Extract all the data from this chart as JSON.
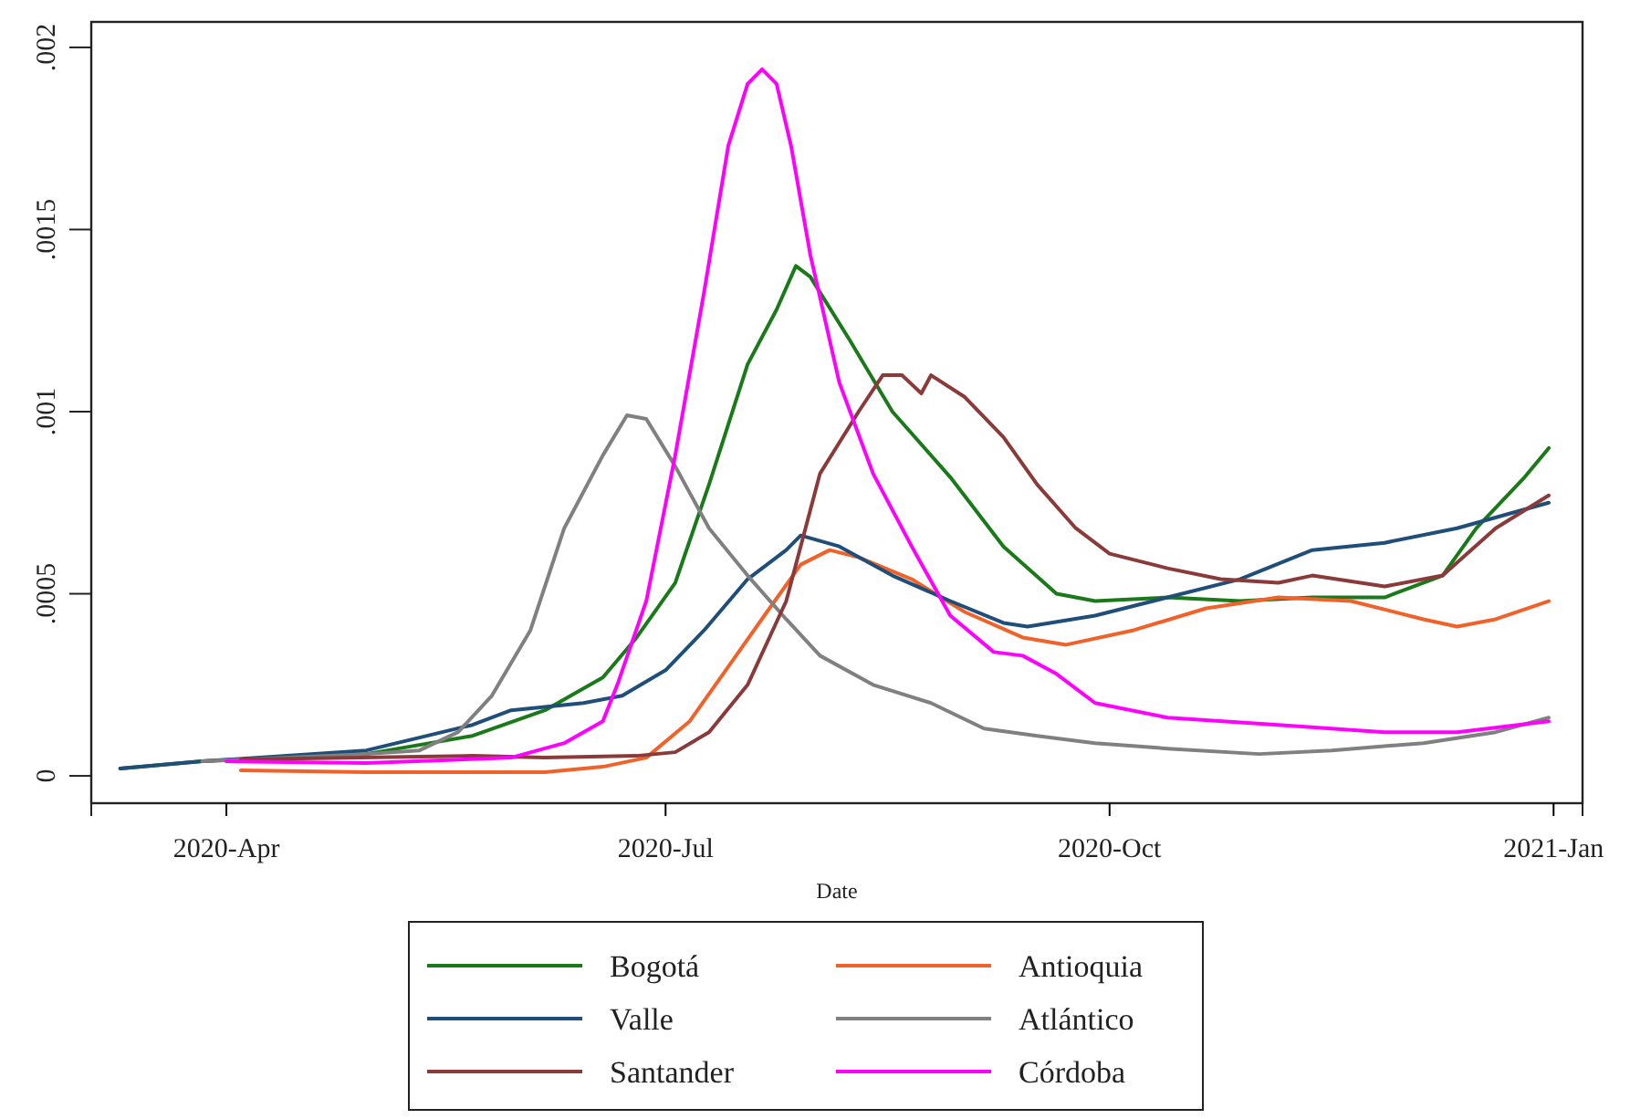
{
  "chart_data": {
    "type": "line",
    "xlabel": "Date",
    "legend": "bottom",
    "grid": false,
    "line_style": "solid",
    "marker": "none",
    "xlim": [
      "2020-03-04",
      "2021-01-07"
    ],
    "xticks": [
      {
        "value": "2020-04-01",
        "label": "2020-Apr"
      },
      {
        "value": "2020-07-01",
        "label": "2020-Jul"
      },
      {
        "value": "2020-10-01",
        "label": "2020-Oct"
      },
      {
        "value": "2021-01-01",
        "label": "2021-Jan"
      }
    ],
    "ylim": [
      -7.5e-05,
      0.00207
    ],
    "yticks": [
      0,
      {
        "value": 0.0005,
        "label": ".0005"
      },
      {
        "value": 0.001,
        "label": ".001"
      },
      {
        "value": 0.0015,
        "label": ".0015"
      },
      {
        "value": 0.002,
        "label": ".002"
      }
    ],
    "series": [
      {
        "name": "Bogotá",
        "color": "#1a7a1a",
        "x": [
          "2020-03-10",
          "2020-03-27",
          "2020-04-30",
          "2020-05-22",
          "2020-06-06",
          "2020-06-18",
          "2020-06-25",
          "2020-07-03",
          "2020-07-10",
          "2020-07-18",
          "2020-07-24",
          "2020-07-28",
          "2020-07-31",
          "2020-08-08",
          "2020-08-17",
          "2020-08-29",
          "2020-09-09",
          "2020-09-20",
          "2020-09-28",
          "2020-10-13",
          "2020-10-28",
          "2020-11-12",
          "2020-11-27",
          "2020-12-09",
          "2020-12-16",
          "2020-12-26",
          "2020-12-31"
        ],
        "values": [
          2e-05,
          4e-05,
          6e-05,
          0.00011,
          0.00018,
          0.00027,
          0.00038,
          0.00053,
          0.0008,
          0.00113,
          0.00128,
          0.0014,
          0.00137,
          0.0012,
          0.001,
          0.00082,
          0.00063,
          0.0005,
          0.00048,
          0.00049,
          0.00048,
          0.00049,
          0.00049,
          0.00055,
          0.00068,
          0.00082,
          0.0009
        ]
      },
      {
        "name": "Antioquia",
        "color": "#f0622a",
        "x": [
          "2020-04-04",
          "2020-04-30",
          "2020-06-06",
          "2020-06-18",
          "2020-06-27",
          "2020-07-06",
          "2020-07-14",
          "2020-07-22",
          "2020-07-29",
          "2020-08-04",
          "2020-08-10",
          "2020-08-21",
          "2020-09-01",
          "2020-09-13",
          "2020-09-22",
          "2020-10-06",
          "2020-10-21",
          "2020-11-05",
          "2020-11-20",
          "2020-12-05",
          "2020-12-12",
          "2020-12-20",
          "2020-12-31"
        ],
        "values": [
          1.5e-05,
          1e-05,
          1e-05,
          2.5e-05,
          5e-05,
          0.00015,
          0.0003,
          0.00045,
          0.00058,
          0.00062,
          0.0006,
          0.00054,
          0.00045,
          0.00038,
          0.00036,
          0.0004,
          0.00046,
          0.00049,
          0.00048,
          0.00043,
          0.00041,
          0.00043,
          0.00048
        ]
      },
      {
        "name": "Valle",
        "color": "#1f4e79",
        "x": [
          "2020-03-10",
          "2020-03-27",
          "2020-04-30",
          "2020-05-22",
          "2020-05-30",
          "2020-06-14",
          "2020-06-22",
          "2020-07-01",
          "2020-07-09",
          "2020-07-18",
          "2020-07-26",
          "2020-07-29",
          "2020-08-06",
          "2020-08-17",
          "2020-08-29",
          "2020-09-09",
          "2020-09-14",
          "2020-09-28",
          "2020-10-13",
          "2020-10-28",
          "2020-11-12",
          "2020-11-27",
          "2020-12-12",
          "2020-12-31"
        ],
        "values": [
          2e-05,
          4e-05,
          7e-05,
          0.00014,
          0.00018,
          0.0002,
          0.00022,
          0.00029,
          0.0004,
          0.00054,
          0.00062,
          0.00066,
          0.00063,
          0.00055,
          0.00048,
          0.00042,
          0.00041,
          0.00044,
          0.00049,
          0.00054,
          0.00062,
          0.00064,
          0.00068,
          0.00075
        ]
      },
      {
        "name": "Atlántico",
        "color": "#808080",
        "x": [
          "2020-03-27",
          "2020-04-30",
          "2020-05-11",
          "2020-05-19",
          "2020-05-26",
          "2020-06-03",
          "2020-06-10",
          "2020-06-18",
          "2020-06-23",
          "2020-06-27",
          "2020-07-03",
          "2020-07-10",
          "2020-07-18",
          "2020-07-26",
          "2020-08-02",
          "2020-08-13",
          "2020-08-25",
          "2020-09-05",
          "2020-09-16",
          "2020-09-28",
          "2020-10-13",
          "2020-11-01",
          "2020-11-16",
          "2020-12-05",
          "2020-12-20",
          "2020-12-31"
        ],
        "values": [
          4e-05,
          6e-05,
          7e-05,
          0.00012,
          0.00022,
          0.0004,
          0.00068,
          0.00088,
          0.00099,
          0.00098,
          0.00085,
          0.00068,
          0.00055,
          0.00043,
          0.00033,
          0.00025,
          0.0002,
          0.00013,
          0.00011,
          9e-05,
          7.5e-05,
          6e-05,
          7e-05,
          9e-05,
          0.00012,
          0.00016
        ]
      },
      {
        "name": "Santander",
        "color": "#8b3a3a",
        "x": [
          "2020-04-04",
          "2020-05-22",
          "2020-06-06",
          "2020-06-25",
          "2020-07-03",
          "2020-07-10",
          "2020-07-18",
          "2020-07-26",
          "2020-08-02",
          "2020-08-10",
          "2020-08-15",
          "2020-08-19",
          "2020-08-23",
          "2020-08-25",
          "2020-09-01",
          "2020-09-09",
          "2020-09-16",
          "2020-09-24",
          "2020-10-01",
          "2020-10-13",
          "2020-10-24",
          "2020-11-05",
          "2020-11-12",
          "2020-11-27",
          "2020-12-09",
          "2020-12-20",
          "2020-12-31"
        ],
        "values": [
          4.5e-05,
          5.5e-05,
          5e-05,
          5.5e-05,
          6.5e-05,
          0.00012,
          0.00025,
          0.00048,
          0.00083,
          0.001,
          0.0011,
          0.0011,
          0.00105,
          0.0011,
          0.00104,
          0.00093,
          0.0008,
          0.00068,
          0.00061,
          0.00057,
          0.00054,
          0.00053,
          0.00055,
          0.00052,
          0.00055,
          0.00068,
          0.00077
        ]
      },
      {
        "name": "Córdoba",
        "color": "#ff00ff",
        "x": [
          "2020-04-01",
          "2020-04-30",
          "2020-05-30",
          "2020-06-10",
          "2020-06-18",
          "2020-06-21",
          "2020-06-27",
          "2020-07-03",
          "2020-07-09",
          "2020-07-14",
          "2020-07-18",
          "2020-07-21",
          "2020-07-24",
          "2020-07-27",
          "2020-07-31",
          "2020-08-06",
          "2020-08-13",
          "2020-08-21",
          "2020-08-29",
          "2020-09-07",
          "2020-09-13",
          "2020-09-20",
          "2020-09-28",
          "2020-10-13",
          "2020-11-05",
          "2020-11-27",
          "2020-12-12",
          "2020-12-31"
        ],
        "values": [
          4e-05,
          3.5e-05,
          5e-05,
          9e-05,
          0.00015,
          0.00025,
          0.00048,
          0.00088,
          0.00133,
          0.00173,
          0.0019,
          0.00194,
          0.0019,
          0.00173,
          0.00143,
          0.00108,
          0.00083,
          0.00063,
          0.00044,
          0.00034,
          0.00033,
          0.00028,
          0.0002,
          0.00016,
          0.00014,
          0.00012,
          0.00012,
          0.00015
        ]
      }
    ]
  }
}
